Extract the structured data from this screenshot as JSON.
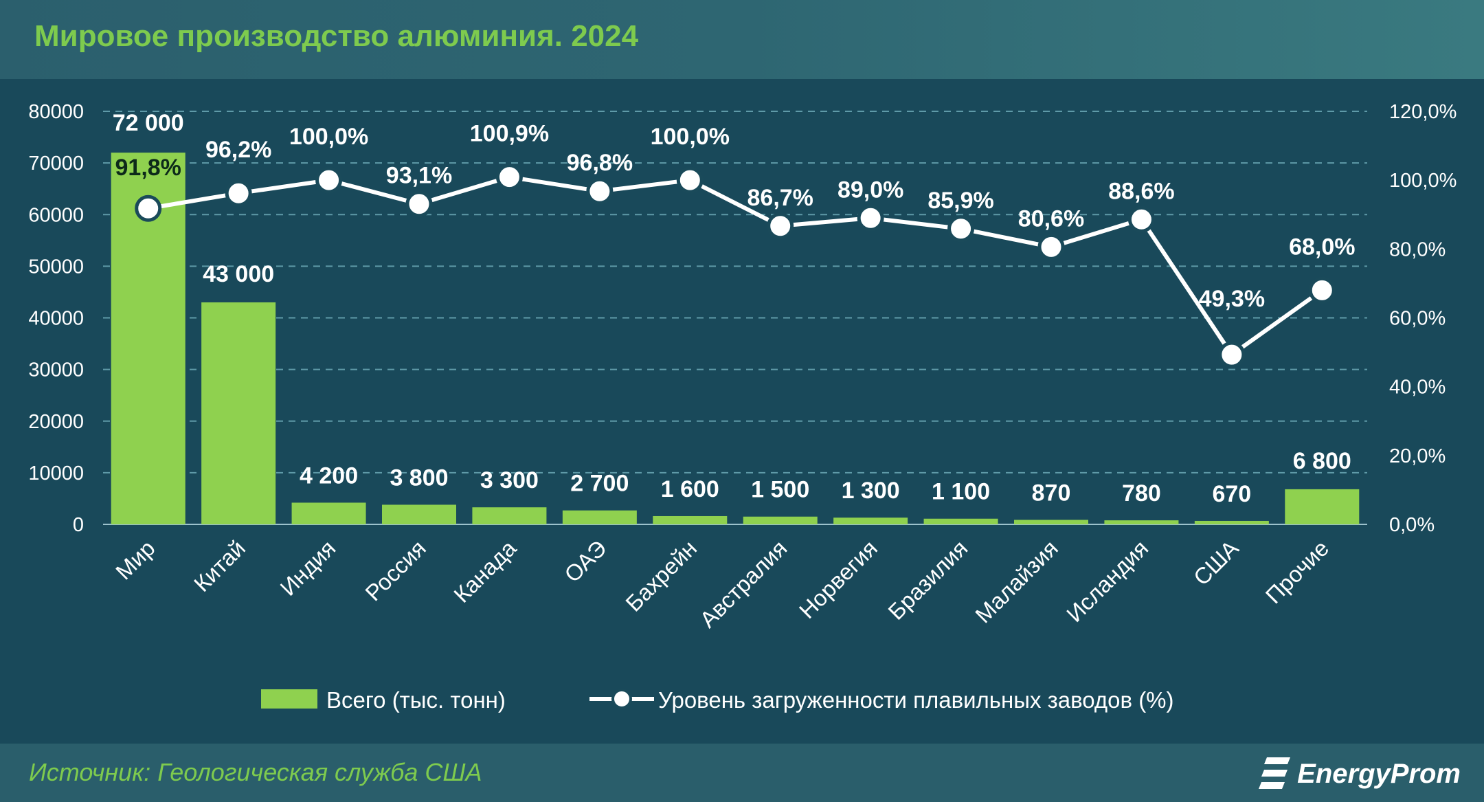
{
  "header": {
    "title": "Мировое производство алюминия. 2024"
  },
  "footer": {
    "source": "Источник: Геологическая служба США",
    "logo_text": "EnergyProm"
  },
  "colors": {
    "bar": "#8fd14f",
    "line": "#ffffff",
    "text": "#ffffff",
    "title": "#7ecb4e",
    "grid": "#5f9aa8"
  },
  "chart_data": {
    "type": "bar",
    "categories": [
      "Мир",
      "Китай",
      "Индия",
      "Россия",
      "Канада",
      "ОАЭ",
      "Бахрейн",
      "Австралия",
      "Норвегия",
      "Бразилия",
      "Малайзия",
      "Исландия",
      "США",
      "Прочие"
    ],
    "series": [
      {
        "name": "Всего (тыс. тонн)",
        "type": "bar",
        "axis": "left",
        "values": [
          72000,
          43000,
          4200,
          3800,
          3300,
          2700,
          1600,
          1500,
          1300,
          1100,
          870,
          780,
          670,
          6800
        ],
        "labels": [
          "72 000",
          "43 000",
          "4 200",
          "3 800",
          "3 300",
          "2 700",
          "1 600",
          "1 500",
          "1 300",
          "1 100",
          "870",
          "780",
          "670",
          "6 800"
        ]
      },
      {
        "name": "Уровень загруженности плавильных заводов (%)",
        "type": "line",
        "axis": "right",
        "values": [
          91.8,
          96.2,
          100.0,
          93.1,
          100.9,
          96.8,
          100.0,
          86.7,
          89.0,
          85.9,
          80.6,
          88.6,
          49.3,
          68.0
        ],
        "labels": [
          "91,8%",
          "96,2%",
          "100,0%",
          "93,1%",
          "100,9%",
          "96,8%",
          "100,0%",
          "86,7%",
          "89,0%",
          "85,9%",
          "80,6%",
          "88,6%",
          "49,3%",
          "68,0%"
        ]
      }
    ],
    "y_left": {
      "ylim": [
        0,
        80000
      ],
      "ticks": [
        "0",
        "10000",
        "20000",
        "30000",
        "40000",
        "50000",
        "60000",
        "70000",
        "80000"
      ]
    },
    "y_right": {
      "ylim": [
        0,
        120
      ],
      "ticks": [
        "0,0%",
        "20,0%",
        "40,0%",
        "60,0%",
        "80,0%",
        "100,0%",
        "120,0%"
      ]
    },
    "grid": true,
    "legend_position": "bottom"
  }
}
